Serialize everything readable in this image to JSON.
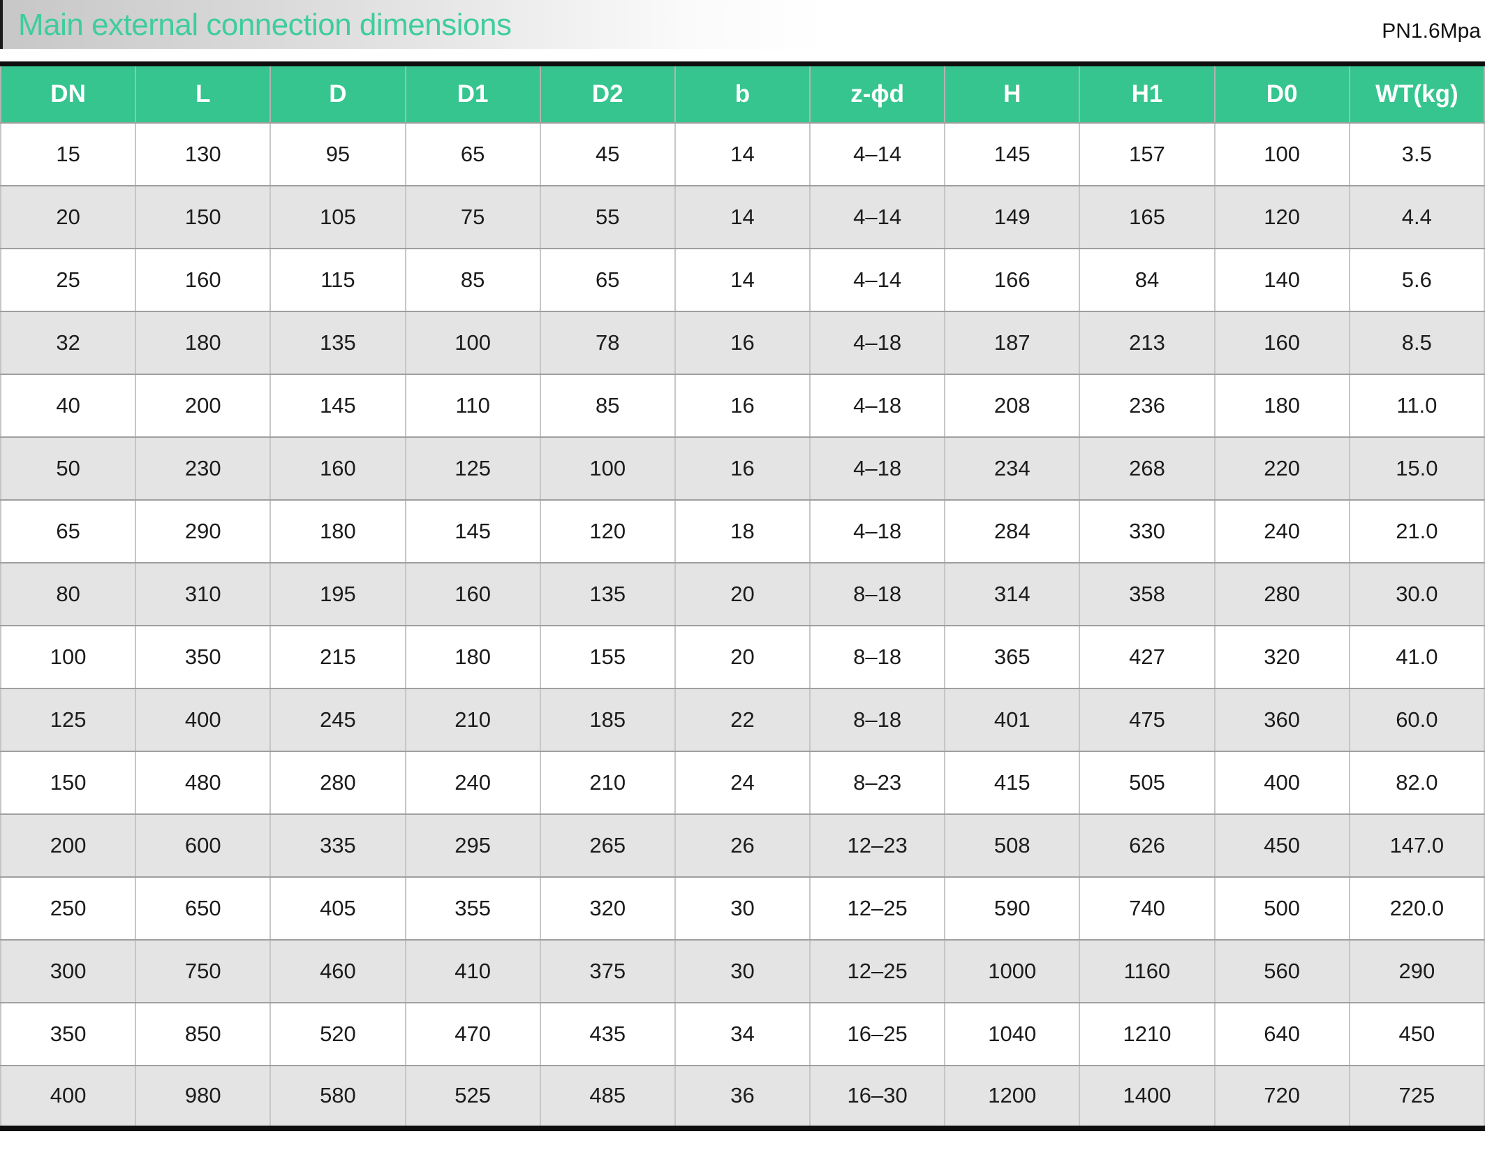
{
  "title": "Main external connection dimensions",
  "pressure_rating": "PN1.6Mpa",
  "table": {
    "headers": [
      "DN",
      "L",
      "D",
      "D1",
      "D2",
      "b",
      "z-ϕd",
      "H",
      "H1",
      "D0",
      "WT(kg)"
    ],
    "rows": [
      [
        "15",
        "130",
        "95",
        "65",
        "45",
        "14",
        "4–14",
        "145",
        "157",
        "100",
        "3.5"
      ],
      [
        "20",
        "150",
        "105",
        "75",
        "55",
        "14",
        "4–14",
        "149",
        "165",
        "120",
        "4.4"
      ],
      [
        "25",
        "160",
        "115",
        "85",
        "65",
        "14",
        "4–14",
        "166",
        "84",
        "140",
        "5.6"
      ],
      [
        "32",
        "180",
        "135",
        "100",
        "78",
        "16",
        "4–18",
        "187",
        "213",
        "160",
        "8.5"
      ],
      [
        "40",
        "200",
        "145",
        "110",
        "85",
        "16",
        "4–18",
        "208",
        "236",
        "180",
        "11.0"
      ],
      [
        "50",
        "230",
        "160",
        "125",
        "100",
        "16",
        "4–18",
        "234",
        "268",
        "220",
        "15.0"
      ],
      [
        "65",
        "290",
        "180",
        "145",
        "120",
        "18",
        "4–18",
        "284",
        "330",
        "240",
        "21.0"
      ],
      [
        "80",
        "310",
        "195",
        "160",
        "135",
        "20",
        "8–18",
        "314",
        "358",
        "280",
        "30.0"
      ],
      [
        "100",
        "350",
        "215",
        "180",
        "155",
        "20",
        "8–18",
        "365",
        "427",
        "320",
        "41.0"
      ],
      [
        "125",
        "400",
        "245",
        "210",
        "185",
        "22",
        "8–18",
        "401",
        "475",
        "360",
        "60.0"
      ],
      [
        "150",
        "480",
        "280",
        "240",
        "210",
        "24",
        "8–23",
        "415",
        "505",
        "400",
        "82.0"
      ],
      [
        "200",
        "600",
        "335",
        "295",
        "265",
        "26",
        "12–23",
        "508",
        "626",
        "450",
        "147.0"
      ],
      [
        "250",
        "650",
        "405",
        "355",
        "320",
        "30",
        "12–25",
        "590",
        "740",
        "500",
        "220.0"
      ],
      [
        "300",
        "750",
        "460",
        "410",
        "375",
        "30",
        "12–25",
        "1000",
        "1160",
        "560",
        "290"
      ],
      [
        "350",
        "850",
        "520",
        "470",
        "435",
        "34",
        "16–25",
        "1040",
        "1210",
        "640",
        "450"
      ],
      [
        "400",
        "980",
        "580",
        "525",
        "485",
        "36",
        "16–30",
        "1200",
        "1400",
        "720",
        "725"
      ]
    ]
  },
  "colors": {
    "header_bg": "#36c58f",
    "title_text": "#3ecd9c",
    "row_alt_bg": "#e4e4e4"
  }
}
